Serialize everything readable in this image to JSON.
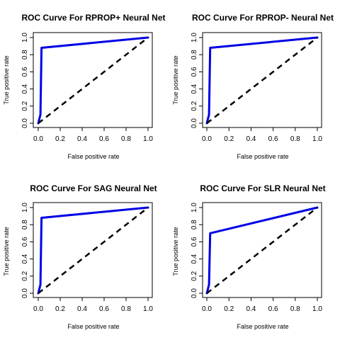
{
  "chart_data": [
    {
      "type": "line",
      "title": "ROC Curve For RPROP+ Neural Net",
      "xlabel": "False positive rate",
      "ylabel": "True positive rate",
      "xlim": [
        0,
        1
      ],
      "ylim": [
        0,
        1
      ],
      "ticks": [
        "0.0",
        "0.2",
        "0.4",
        "0.6",
        "0.8",
        "1.0"
      ],
      "grid": false,
      "series": [
        {
          "color": "#0000e6",
          "x": [
            0,
            0.02,
            0.03,
            1
          ],
          "y": [
            0,
            0.1,
            0.88,
            1
          ]
        },
        {
          "color": "#000000",
          "dashed": true,
          "x": [
            0,
            1
          ],
          "y": [
            0,
            1
          ]
        }
      ]
    },
    {
      "type": "line",
      "title": "ROC Curve For RPROP- Neural Net",
      "xlabel": "False positive rate",
      "ylabel": "True positive rate",
      "xlim": [
        0,
        1
      ],
      "ylim": [
        0,
        1
      ],
      "ticks": [
        "0.0",
        "0.2",
        "0.4",
        "0.6",
        "0.8",
        "1.0"
      ],
      "grid": false,
      "series": [
        {
          "color": "#0000e6",
          "x": [
            0,
            0.02,
            0.03,
            1
          ],
          "y": [
            0,
            0.1,
            0.88,
            1
          ]
        },
        {
          "color": "#000000",
          "dashed": true,
          "x": [
            0,
            1
          ],
          "y": [
            0,
            1
          ]
        }
      ]
    },
    {
      "type": "line",
      "title": "ROC Curve For SAG Neural Net",
      "xlabel": "False positive rate",
      "ylabel": "True positive rate",
      "xlim": [
        0,
        1
      ],
      "ylim": [
        0,
        1
      ],
      "ticks": [
        "0.0",
        "0.2",
        "0.4",
        "0.6",
        "0.8",
        "1.0"
      ],
      "grid": false,
      "series": [
        {
          "color": "#0000e6",
          "x": [
            0,
            0.02,
            0.03,
            1
          ],
          "y": [
            0,
            0.1,
            0.88,
            1
          ]
        },
        {
          "color": "#000000",
          "dashed": true,
          "x": [
            0,
            1
          ],
          "y": [
            0,
            1
          ]
        }
      ]
    },
    {
      "type": "line",
      "title": "ROC Curve For SLR Neural Net",
      "xlabel": "False positive rate",
      "ylabel": "True positive rate",
      "xlim": [
        0,
        1
      ],
      "ylim": [
        0,
        1
      ],
      "ticks": [
        "0.0",
        "0.2",
        "0.4",
        "0.6",
        "0.8",
        "1.0"
      ],
      "grid": false,
      "series": [
        {
          "color": "#0000e6",
          "x": [
            0,
            0.02,
            0.03,
            1
          ],
          "y": [
            0,
            0.1,
            0.7,
            1
          ]
        },
        {
          "color": "#000000",
          "dashed": true,
          "x": [
            0,
            1
          ],
          "y": [
            0,
            1
          ]
        }
      ]
    }
  ]
}
